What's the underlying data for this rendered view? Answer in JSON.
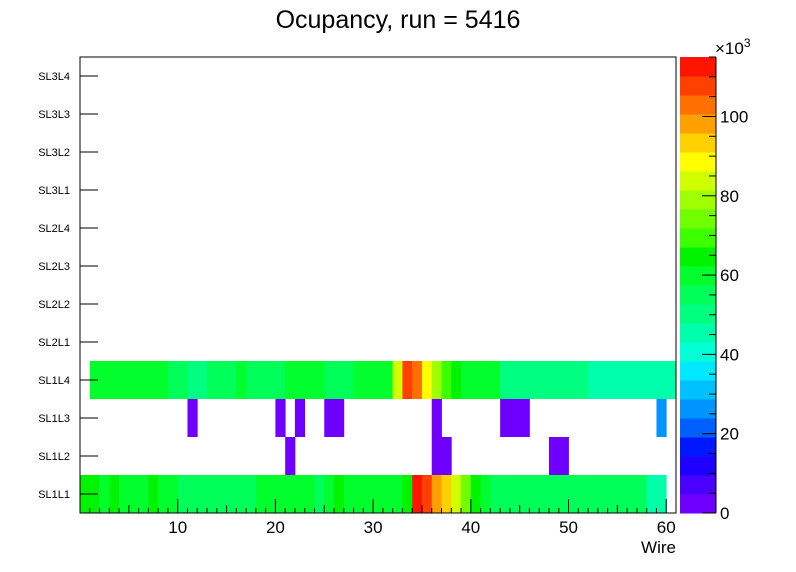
{
  "chart_data": {
    "type": "heatmap",
    "title": "Ocupancy, run = 5416",
    "xlabel": "Wire",
    "ylabel": "",
    "xlim": [
      0,
      61
    ],
    "x_ticks": [
      10,
      20,
      30,
      40,
      50,
      60
    ],
    "layers": [
      "SL1L1",
      "SL1L2",
      "SL1L3",
      "SL1L4",
      "SL2L1",
      "SL2L2",
      "SL2L3",
      "SL2L4",
      "SL3L1",
      "SL3L2",
      "SL3L3",
      "SL3L4"
    ],
    "colorbar": {
      "min": 0,
      "max": 115000,
      "exponent_label": "×10",
      "exponent_power": "3",
      "ticks": [
        0,
        20,
        40,
        60,
        80,
        100
      ],
      "colors": [
        "#6f00ff",
        "#4a00ff",
        "#1e00ff",
        "#0018ff",
        "#0060ff",
        "#0094ff",
        "#00c0ff",
        "#00e8ff",
        "#00ffd4",
        "#00ffaa",
        "#00ff80",
        "#00ff58",
        "#00ff2c",
        "#00f400",
        "#3cff00",
        "#70ff00",
        "#a0ff00",
        "#d0ff00",
        "#ffff00",
        "#ffd000",
        "#ffa000",
        "#ff7000",
        "#ff4000",
        "#ff1400"
      ]
    },
    "series": [
      {
        "layer": "SL1L1",
        "cells": [
          [
            0,
            63000
          ],
          [
            1,
            63000
          ],
          [
            2,
            61000
          ],
          [
            3,
            65000
          ],
          [
            4,
            60000
          ],
          [
            5,
            62000
          ],
          [
            6,
            61000
          ],
          [
            7,
            65000
          ],
          [
            8,
            59000
          ],
          [
            9,
            58000
          ],
          [
            10,
            56000
          ],
          [
            11,
            56000
          ],
          [
            12,
            56000
          ],
          [
            13,
            55000
          ],
          [
            14,
            55000
          ],
          [
            15,
            57000
          ],
          [
            16,
            54000
          ],
          [
            17,
            54000
          ],
          [
            18,
            58000
          ],
          [
            19,
            60000
          ],
          [
            20,
            60000
          ],
          [
            21,
            60000
          ],
          [
            22,
            60000
          ],
          [
            23,
            62000
          ],
          [
            24,
            57000
          ],
          [
            25,
            59000
          ],
          [
            26,
            63000
          ],
          [
            27,
            60000
          ],
          [
            28,
            60000
          ],
          [
            29,
            60000
          ],
          [
            30,
            60000
          ],
          [
            31,
            60000
          ],
          [
            32,
            60000
          ],
          [
            33,
            67000
          ],
          [
            34,
            113000
          ],
          [
            35,
            109000
          ],
          [
            36,
            98000
          ],
          [
            37,
            92000
          ],
          [
            38,
            86000
          ],
          [
            39,
            74000
          ],
          [
            40,
            65000
          ],
          [
            41,
            60000
          ],
          [
            42,
            55000
          ],
          [
            43,
            55000
          ],
          [
            44,
            55000
          ],
          [
            45,
            55000
          ],
          [
            46,
            55000
          ],
          [
            47,
            55000
          ],
          [
            48,
            55000
          ],
          [
            49,
            53000
          ],
          [
            50,
            53000
          ],
          [
            51,
            53000
          ],
          [
            52,
            53000
          ],
          [
            53,
            53000
          ],
          [
            54,
            53000
          ],
          [
            55,
            53000
          ],
          [
            56,
            53000
          ],
          [
            57,
            53000
          ],
          [
            58,
            45000
          ],
          [
            59,
            45000
          ]
        ]
      },
      {
        "layer": "SL1L2",
        "cells": [
          [
            21,
            4000
          ],
          [
            36,
            4000
          ],
          [
            37,
            4000
          ],
          [
            48,
            4000
          ],
          [
            49,
            4000
          ]
        ]
      },
      {
        "layer": "SL1L3",
        "cells": [
          [
            11,
            4000
          ],
          [
            20,
            4000
          ],
          [
            22,
            4000
          ],
          [
            25,
            4000
          ],
          [
            26,
            4000
          ],
          [
            36,
            4000
          ],
          [
            43,
            4000
          ],
          [
            44,
            4000
          ],
          [
            45,
            4000
          ],
          [
            59,
            28000
          ]
        ]
      },
      {
        "layer": "SL1L4",
        "cells": [
          [
            1,
            58000
          ],
          [
            2,
            58000
          ],
          [
            3,
            58000
          ],
          [
            4,
            58000
          ],
          [
            5,
            58000
          ],
          [
            6,
            58000
          ],
          [
            7,
            58000
          ],
          [
            8,
            58000
          ],
          [
            9,
            55000
          ],
          [
            10,
            55000
          ],
          [
            11,
            50000
          ],
          [
            12,
            50000
          ],
          [
            13,
            55000
          ],
          [
            14,
            55000
          ],
          [
            15,
            55000
          ],
          [
            16,
            58000
          ],
          [
            17,
            55000
          ],
          [
            18,
            55000
          ],
          [
            19,
            55000
          ],
          [
            20,
            55000
          ],
          [
            21,
            58000
          ],
          [
            22,
            58000
          ],
          [
            23,
            58000
          ],
          [
            24,
            58000
          ],
          [
            25,
            55000
          ],
          [
            26,
            55000
          ],
          [
            27,
            55000
          ],
          [
            28,
            58000
          ],
          [
            29,
            58000
          ],
          [
            30,
            58000
          ],
          [
            31,
            58000
          ],
          [
            32,
            85000
          ],
          [
            33,
            110000
          ],
          [
            34,
            103000
          ],
          [
            35,
            90000
          ],
          [
            36,
            78000
          ],
          [
            37,
            70000
          ],
          [
            38,
            65000
          ],
          [
            39,
            60000
          ],
          [
            40,
            58000
          ],
          [
            41,
            58000
          ],
          [
            42,
            58000
          ],
          [
            43,
            50000
          ],
          [
            44,
            50000
          ],
          [
            45,
            50000
          ],
          [
            46,
            50000
          ],
          [
            47,
            50000
          ],
          [
            48,
            50000
          ],
          [
            49,
            50000
          ],
          [
            50,
            50000
          ],
          [
            51,
            50000
          ],
          [
            52,
            45000
          ],
          [
            53,
            45000
          ],
          [
            54,
            45000
          ],
          [
            55,
            45000
          ],
          [
            56,
            45000
          ],
          [
            57,
            45000
          ],
          [
            58,
            45000
          ],
          [
            59,
            45000
          ],
          [
            60,
            45000
          ]
        ]
      }
    ]
  }
}
